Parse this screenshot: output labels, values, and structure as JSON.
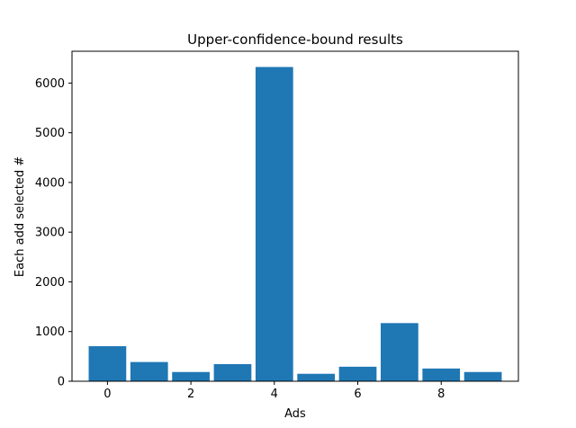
{
  "chart_data": {
    "type": "bar",
    "title": "Upper-confidence-bound results",
    "xlabel": "Ads",
    "ylabel": "Each add selected #",
    "x": [
      0,
      1,
      2,
      3,
      4,
      5,
      6,
      7,
      8,
      9
    ],
    "values": [
      705,
      387,
      186,
      345,
      6323,
      150,
      292,
      1170,
      256,
      186
    ],
    "xlim": [
      -0.85,
      9.85
    ],
    "ylim": [
      0,
      6640
    ],
    "xticks": [
      0,
      2,
      4,
      6,
      8
    ],
    "yticks": [
      0,
      1000,
      2000,
      3000,
      4000,
      5000,
      6000
    ],
    "bar_width": 0.9,
    "bar_color": "#1f77b4",
    "grid": false
  }
}
